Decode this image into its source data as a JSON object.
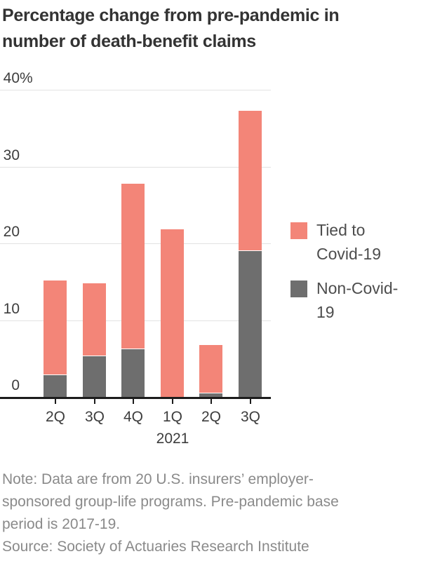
{
  "header": {
    "title": "Percentage change from pre-pandemic in number of death-benefit claims",
    "title_lines": [
      "Percentage change from pre-pandemic in",
      "number of death-benefit claims"
    ]
  },
  "legend": {
    "items": [
      {
        "label": "Tied to Covid-19",
        "color": "#f38578"
      },
      {
        "label": "Non-Covid-19",
        "color": "#6e6e6e"
      }
    ],
    "position": "right"
  },
  "footer": {
    "note_lines": [
      "Note: Data are from 20 U.S. insurers’ employer-",
      "sponsored group-life programs. Pre-pandemic base",
      "period is 2017-19."
    ],
    "note": "Note: Data are from 20 U.S. insurers’ employer-sponsored group-life programs. Pre-pandemic base period is 2017-19.",
    "source": "Source: Society of Actuaries Research Institute"
  },
  "chart_data": {
    "type": "bar",
    "stacked": true,
    "title": "Percentage change from pre-pandemic in number of death-benefit claims",
    "categories": [
      "2Q",
      "3Q",
      "4Q",
      "1Q",
      "2Q",
      "3Q"
    ],
    "x_year_label": {
      "text": "2021",
      "under_category_index": 3
    },
    "series": [
      {
        "name": "Tied to Covid-19",
        "color": "#f38578",
        "values": [
          12.4,
          9.5,
          21.6,
          21.8,
          6.3,
          18.3
        ]
      },
      {
        "name": "Non-Covid-19",
        "color": "#6e6e6e",
        "values": [
          2.8,
          5.3,
          6.2,
          0,
          0.5,
          19.0
        ]
      }
    ],
    "totals": [
      15.2,
      14.8,
      27.8,
      21.8,
      6.8,
      37.3
    ],
    "xlabel": "",
    "ylabel": "",
    "ylim": [
      0,
      40
    ],
    "yticks": [
      0,
      10,
      20,
      30,
      40
    ],
    "ytick_top_suffix": "%",
    "grid": "horizontal",
    "legend_position": "right",
    "colors": {
      "gridline": "#e2e2e2",
      "axis_line": "#1c1c1c",
      "axis_label": "#3d3d3d",
      "title_text": "#333333",
      "legend_text": "#4d4d4d",
      "footnote_text": "#8a8a8a"
    }
  }
}
